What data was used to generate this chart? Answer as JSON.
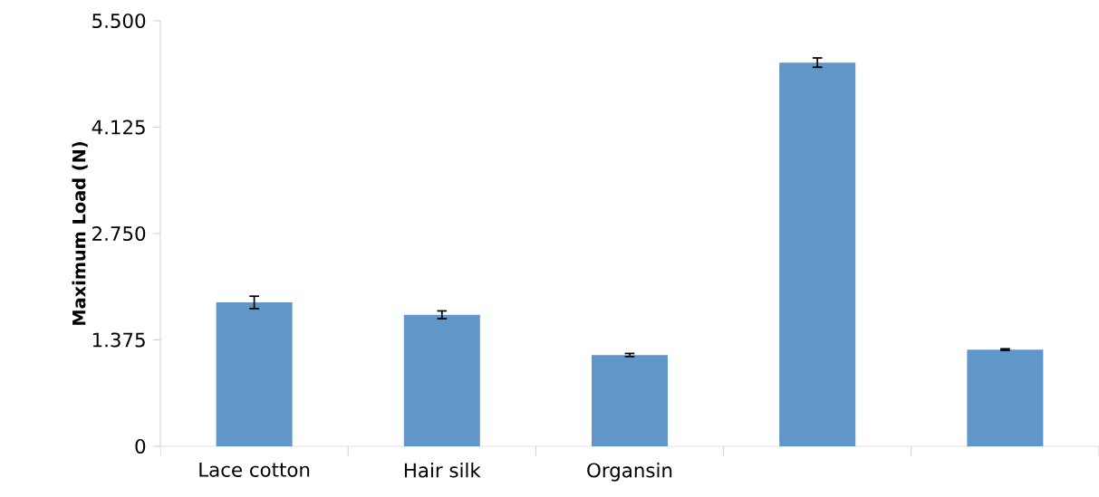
{
  "chart_data": {
    "type": "bar",
    "ylabel": "Maximum Load (N)",
    "categories": [
      "Lace cotton",
      "Hair silk",
      "Organsin",
      null,
      null
    ],
    "values": [
      1.86,
      1.7,
      1.18,
      4.96,
      1.25
    ],
    "errors": [
      0.08,
      0.05,
      0.02,
      0.06,
      0.01
    ],
    "color": "#6096c8",
    "ylim": [
      0,
      5.5
    ],
    "yticks": [
      {
        "value": 0,
        "label": "0"
      },
      {
        "value": 1.375,
        "label": "1.375"
      },
      {
        "value": 2.75,
        "label": "2.750"
      },
      {
        "value": 4.125,
        "label": "4.125"
      },
      {
        "value": 5.5,
        "label": "5.500"
      }
    ],
    "grid": false
  }
}
